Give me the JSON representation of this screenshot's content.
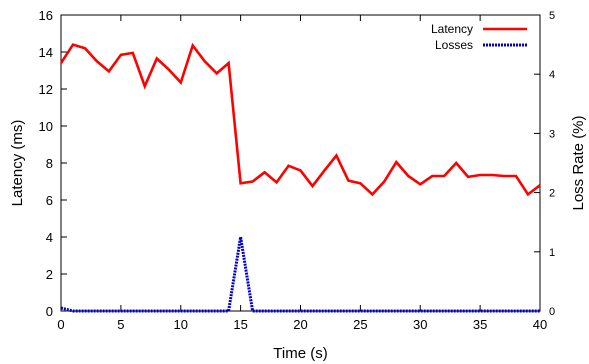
{
  "chart_data": {
    "type": "line",
    "xlabel": "Time (s)",
    "ylabel_left": "Latency (ms)",
    "ylabel_right": "Loss Rate (%)",
    "xlim": [
      0,
      40
    ],
    "ylim_left": [
      0,
      16
    ],
    "ylim_right": [
      0,
      5
    ],
    "x_ticks": [
      0,
      5,
      10,
      15,
      20,
      25,
      30,
      35,
      40
    ],
    "y_left_ticks": [
      0,
      2,
      4,
      6,
      8,
      10,
      12,
      14,
      16
    ],
    "y_right_ticks": [
      0,
      1,
      2,
      3,
      4,
      5
    ],
    "legend_position": "top-right",
    "grid": false,
    "series": [
      {
        "name": "Latency",
        "axis": "left",
        "color": "#ff0000",
        "style": "solid",
        "x": [
          0,
          1,
          2,
          3,
          4,
          5,
          6,
          7,
          8,
          9,
          10,
          11,
          12,
          13,
          14,
          15,
          16,
          17,
          18,
          19,
          20,
          21,
          22,
          23,
          24,
          25,
          26,
          27,
          28,
          29,
          30,
          31,
          32,
          33,
          34,
          35,
          36,
          37,
          38,
          39,
          40
        ],
        "values": [
          13.4,
          14.4,
          14.2,
          13.5,
          12.95,
          13.85,
          13.95,
          12.15,
          13.65,
          13.05,
          12.35,
          14.35,
          13.5,
          12.85,
          13.4,
          6.9,
          7.0,
          7.5,
          6.95,
          7.85,
          7.6,
          6.75,
          7.6,
          8.4,
          7.05,
          6.9,
          6.3,
          7.0,
          8.05,
          7.3,
          6.85,
          7.3,
          7.3,
          8.0,
          7.25,
          7.35,
          7.35,
          7.3,
          7.3,
          6.3,
          6.8
        ]
      },
      {
        "name": "Losses",
        "axis": "right",
        "color": "#0000cc",
        "style": "dashed",
        "x": [
          0,
          1,
          14,
          15,
          16,
          40
        ],
        "values": [
          0.05,
          0,
          0,
          1.25,
          0,
          0
        ]
      }
    ]
  }
}
